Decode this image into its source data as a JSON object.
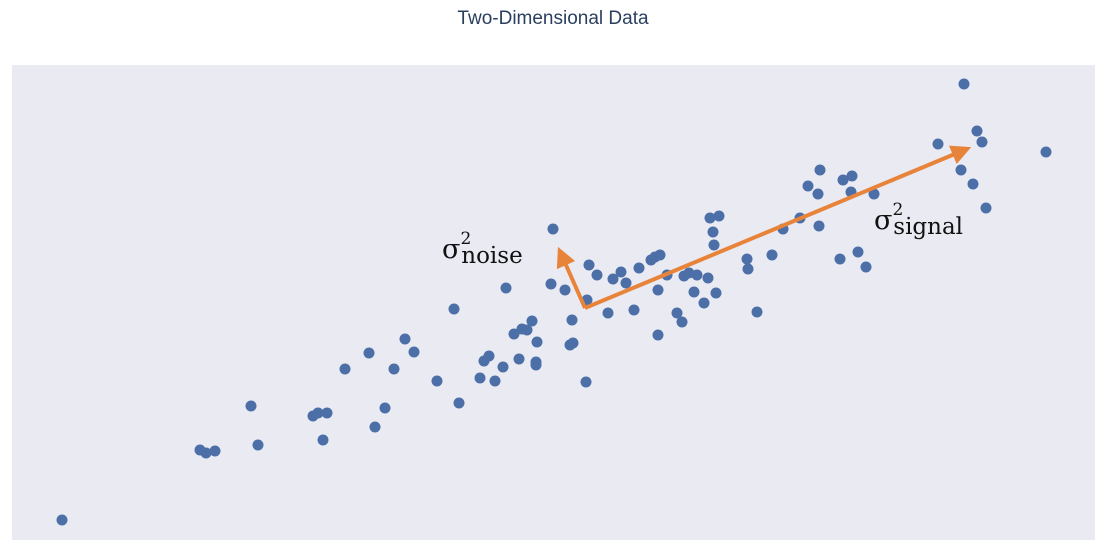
{
  "chart_data": {
    "type": "scatter",
    "title": "Two-Dimensional Data",
    "color": "#4c6fa8",
    "xlim": [
      1.2,
      109.5
    ],
    "ylim": [
      1.3,
      48.8
    ],
    "x": [
      6.2,
      20.0,
      20.6,
      21.5,
      25.1,
      25.8,
      31.3,
      31.8,
      32.7,
      32.3,
      34.5,
      36.9,
      37.5,
      38.5,
      39.4,
      40.5,
      41.4,
      43.7,
      45.4,
      45.9,
      48.0,
      48.4,
      48.9,
      49.5,
      50.3,
      50.6,
      51.4,
      51.9,
      52.2,
      52.7,
      53.2,
      53.6,
      53.7,
      53.6,
      55.1,
      55.3,
      56.5,
      57.0,
      57.2,
      57.3,
      58.6,
      58.9,
      58.7,
      59.7,
      60.8,
      61.3,
      62.1,
      62.6,
      63.4,
      63.9,
      65.1,
      65.5,
      66.0,
      65.8,
      65.8,
      66.7,
      67.7,
      68.2,
      68.4,
      68.9,
      69.4,
      69.7,
      70.4,
      70.8,
      71.0,
      71.3,
      71.4,
      71.9,
      71.6,
      74.8,
      74.7,
      75.7,
      77.2,
      78.3,
      80.0,
      80.8,
      81.8,
      81.9,
      82.0,
      84.0,
      84.3,
      85.2,
      85.1,
      85.8,
      86.6,
      87.4,
      93.8,
      96.1,
      96.4,
      97.3,
      97.7,
      98.2,
      98.6,
      104.6
    ],
    "y": [
      3.3,
      10.3,
      10.0,
      10.2,
      14.7,
      10.8,
      13.7,
      14.0,
      14.0,
      11.3,
      18.4,
      20.0,
      12.6,
      14.5,
      18.4,
      21.4,
      20.1,
      17.2,
      24.4,
      15.0,
      17.5,
      19.2,
      19.7,
      17.2,
      18.6,
      26.5,
      21.9,
      19.4,
      22.4,
      22.3,
      23.2,
      19.1,
      21.1,
      18.8,
      26.9,
      32.4,
      26.3,
      20.8,
      23.3,
      21.0,
      17.1,
      28.8,
      25.3,
      27.8,
      24.0,
      27.4,
      28.1,
      27.0,
      24.3,
      28.5,
      29.3,
      29.6,
      29.8,
      26.3,
      21.8,
      27.8,
      24.0,
      23.1,
      27.7,
      28.0,
      26.1,
      27.8,
      25.0,
      27.5,
      33.5,
      32.1,
      30.8,
      33.7,
      26.0,
      28.4,
      29.4,
      24.1,
      29.8,
      32.4,
      33.5,
      36.7,
      35.9,
      32.7,
      38.3,
      29.4,
      37.3,
      37.7,
      36.1,
      30.1,
      28.6,
      35.9,
      40.9,
      38.3,
      46.9,
      36.9,
      42.2,
      41.1,
      34.5,
      40.1
    ],
    "annotations": [
      {
        "symbol": "σ",
        "superscript": "2",
        "subscript": "noise"
      },
      {
        "symbol": "σ",
        "superscript": "2",
        "subscript": "signal"
      }
    ]
  }
}
